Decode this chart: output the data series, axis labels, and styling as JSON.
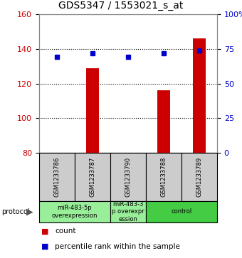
{
  "title": "GDS5347 / 1553021_s_at",
  "samples": [
    "GSM1233786",
    "GSM1233787",
    "GSM1233790",
    "GSM1233788",
    "GSM1233789"
  ],
  "counts": [
    80,
    129,
    80,
    116,
    146
  ],
  "percentiles": [
    69,
    72,
    69,
    72,
    74
  ],
  "ylim_left": [
    80,
    160
  ],
  "ylim_right": [
    0,
    100
  ],
  "yticks_left": [
    80,
    100,
    120,
    140,
    160
  ],
  "yticks_right": [
    0,
    25,
    50,
    75,
    100
  ],
  "ytick_labels_right": [
    "0",
    "25",
    "50",
    "75",
    "100%"
  ],
  "bar_color": "#cc0000",
  "dot_color": "#0000cc",
  "proto_groups": [
    {
      "label": "miR-483-5p\noverexpression",
      "start": 0,
      "end": 2,
      "color": "#99ee99"
    },
    {
      "label": "miR-483-3\np overexpr\nession",
      "start": 2,
      "end": 3,
      "color": "#99ee99"
    },
    {
      "label": "control",
      "start": 3,
      "end": 5,
      "color": "#44cc44"
    }
  ],
  "background_color": "#ffffff",
  "sample_box_color": "#cccccc",
  "ylabel_left_color": "#cc0000",
  "ylabel_right_color": "#0000cc",
  "title_fontsize": 10,
  "tick_fontsize": 8,
  "sample_fontsize": 6,
  "proto_fontsize": 6,
  "legend_fontsize": 7.5
}
